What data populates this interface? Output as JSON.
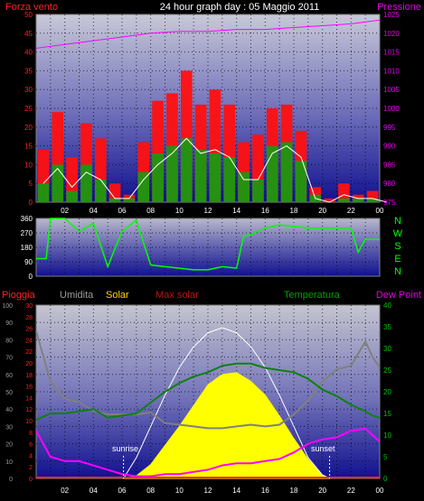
{
  "header": {
    "left_label": "Forza vento",
    "title": "24 hour graph day : 05 Maggio 2011",
    "right_label": "Pressione"
  },
  "colors": {
    "wind_gust": "#ff1010",
    "wind_avg": "#10a010",
    "wind_line": "#ffffff",
    "pressure": "#ff00ff",
    "winddir": "#00ff00",
    "rain": "#ff3030",
    "humidity": "#808080",
    "solar": "#ffff00",
    "max_solar": "#ffffff",
    "temperature": "#108010",
    "dewpoint": "#ff00ff",
    "text_red": "#ff2020",
    "text_magenta": "#e000e0",
    "text_green": "#00c000",
    "text_gray": "#9a9a9a",
    "text_yellow": "#ffd700",
    "text_white": "#ffffff"
  },
  "charts": {
    "wind": {
      "left_ticks": [
        "0",
        "5",
        "10",
        "15",
        "20",
        "25",
        "30",
        "35",
        "40",
        "45",
        "50"
      ],
      "right_ticks": [
        "975",
        "980",
        "985",
        "990",
        "995",
        "1000",
        "1005",
        "1010",
        "1015",
        "1020",
        "1025"
      ],
      "x_ticks": [
        "02",
        "04",
        "06",
        "08",
        "10",
        "12",
        "14",
        "16",
        "18",
        "20",
        "22",
        "00"
      ]
    },
    "direction": {
      "left_ticks": [
        "0",
        "90",
        "180",
        "270",
        "360"
      ],
      "compass": [
        "N",
        "W",
        "S",
        "E",
        "N"
      ]
    },
    "bottom": {
      "legend": {
        "rain": "Pioggia",
        "humidity": "Umidita",
        "solar": "Solar",
        "max_solar": "Max solar",
        "temperature": "Temperatura",
        "dewpoint": "Dew Point"
      },
      "humidity_ticks": [
        "0",
        "10",
        "20",
        "30",
        "40",
        "50",
        "60",
        "70",
        "80",
        "90",
        "100"
      ],
      "rain_ticks": [
        "0",
        "2",
        "4",
        "6",
        "8",
        "10",
        "12",
        "14",
        "16",
        "18",
        "20",
        "22",
        "24",
        "26",
        "28",
        "30"
      ],
      "temp_ticks": [
        "0",
        "5",
        "10",
        "15",
        "20",
        "25",
        "30",
        "35",
        "40"
      ],
      "x_ticks": [
        "02",
        "04",
        "06",
        "08",
        "10",
        "12",
        "14",
        "16",
        "18",
        "20",
        "22",
        "00"
      ],
      "sunrise_label": "sunrise",
      "sunset_label": "sunset"
    }
  },
  "chart_data": [
    {
      "type": "bar",
      "x": [
        0,
        1,
        2,
        3,
        4,
        5,
        6,
        7,
        8,
        9,
        10,
        11,
        12,
        13,
        14,
        15,
        16,
        17,
        18,
        19,
        20,
        21,
        22,
        23,
        24
      ],
      "series": [
        {
          "name": "Forza vento",
          "values": [
            14,
            24,
            12,
            21,
            17,
            5,
            2,
            16,
            27,
            29,
            35,
            26,
            30,
            26,
            16,
            18,
            25,
            26,
            19,
            4,
            1,
            5,
            2,
            3,
            0
          ]
        },
        {
          "name": "",
          "values": [
            5,
            10,
            3,
            10,
            6,
            1,
            1,
            8,
            13,
            15,
            17,
            14,
            13,
            12,
            8,
            6,
            15,
            16,
            11,
            2,
            0,
            1,
            1,
            1,
            0
          ]
        },
        {
          "name": "",
          "values": [
            5,
            9,
            4,
            8,
            6,
            1,
            1,
            6,
            10,
            13,
            17,
            13,
            14,
            12,
            6,
            6,
            13,
            15,
            12,
            1,
            0,
            2,
            1,
            1,
            0
          ]
        }
      ],
      "xlim": [
        0,
        24
      ],
      "ylim": [
        0,
        50
      ],
      "ylabel": "Forza vento"
    },
    {
      "type": "line",
      "x": [
        0,
        2,
        4,
        6,
        8,
        10,
        12,
        14,
        16,
        18,
        20,
        22,
        24
      ],
      "series": [
        {
          "name": "Pressione",
          "values": [
            1016,
            1017,
            1018,
            1019,
            1020,
            1020.5,
            1020.5,
            1021,
            1021,
            1021.5,
            1022,
            1022.5,
            1023.5
          ]
        }
      ],
      "ylim": [
        975,
        1025
      ],
      "ylabel": "Pressione"
    },
    {
      "type": "line",
      "x": [
        0,
        0.7,
        1,
        2,
        3,
        4,
        5,
        6,
        7,
        8,
        9,
        10,
        11,
        12,
        13,
        14,
        14.5,
        15,
        16,
        17,
        18,
        19,
        20,
        21,
        22,
        22.5,
        23,
        24
      ],
      "series": [
        {
          "name": "",
          "values": [
            110,
            110,
            360,
            360,
            280,
            330,
            60,
            280,
            350,
            70,
            60,
            50,
            40,
            40,
            60,
            50,
            250,
            260,
            300,
            320,
            310,
            300,
            300,
            300,
            300,
            150,
            230,
            230
          ]
        }
      ],
      "ylim": [
        0,
        360
      ]
    },
    {
      "type": "line",
      "x": [
        0,
        1,
        2,
        3,
        4,
        5,
        6,
        7,
        8,
        9,
        10,
        11,
        12,
        13,
        14,
        15,
        16,
        17,
        18,
        19,
        20,
        21,
        22,
        23,
        23.5,
        24
      ],
      "series": [
        {
          "name": "Umidita",
          "values": [
            85,
            56,
            46,
            44,
            39,
            37,
            37,
            37,
            38,
            32,
            31,
            30,
            29,
            29,
            30,
            31,
            30,
            31,
            37,
            45,
            56,
            63,
            65,
            79,
            70,
            64
          ]
        },
        {
          "name": "Temperatura",
          "values": [
            13.5,
            15,
            15,
            15.5,
            16,
            14,
            14.5,
            15,
            17.5,
            20,
            22,
            23.5,
            24.5,
            26,
            26.5,
            26.5,
            25.5,
            25,
            24.5,
            23,
            20.5,
            19,
            17,
            15.5,
            14.5,
            14
          ]
        },
        {
          "name": "Dew Point",
          "values": [
            11,
            5,
            4,
            4,
            3,
            2,
            1,
            0.5,
            0.5,
            1,
            1,
            1.5,
            2,
            3,
            3.5,
            3.5,
            4,
            4.5,
            6,
            8,
            9,
            9.5,
            11,
            11.5,
            10,
            8.5
          ]
        }
      ],
      "ylim": [
        0,
        100
      ],
      "xlim": [
        0,
        24
      ]
    },
    {
      "type": "area",
      "x": [
        6.1,
        7,
        8,
        9,
        10,
        11,
        12,
        13,
        14,
        15,
        16,
        17,
        18,
        19,
        20,
        20.5
      ],
      "series": [
        {
          "name": "Solar",
          "values": [
            0,
            15,
            80,
            190,
            300,
            420,
            540,
            600,
            610,
            560,
            480,
            360,
            230,
            110,
            20,
            0
          ]
        },
        {
          "name": "Max solar",
          "values": [
            0,
            120,
            300,
            480,
            640,
            760,
            840,
            870,
            840,
            760,
            640,
            480,
            300,
            120,
            20,
            0
          ]
        }
      ],
      "ylim": [
        0,
        1000
      ],
      "sunrise": 6.1,
      "sunset": 20.5
    }
  ]
}
